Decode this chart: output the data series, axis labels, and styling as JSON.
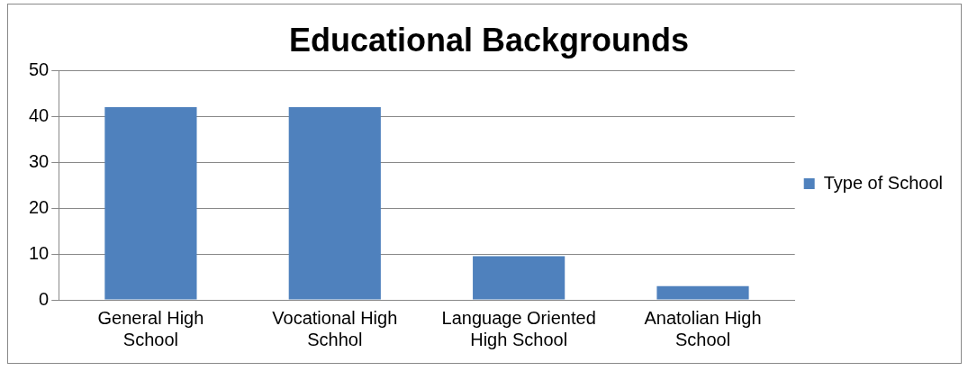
{
  "chart_data": {
    "type": "bar",
    "title": "Educational Backgrounds",
    "categories": [
      "General High School",
      "Vocational High Schhol",
      "Language Oriented High School",
      "Anatolian High School"
    ],
    "series": [
      {
        "name": "Type of School",
        "color": "#4f81bd",
        "values": [
          42,
          42,
          9.5,
          3
        ]
      }
    ],
    "ylim": [
      0,
      50
    ],
    "yticks": [
      0,
      10,
      20,
      30,
      40,
      50
    ],
    "grid": "y",
    "legend": "right"
  }
}
